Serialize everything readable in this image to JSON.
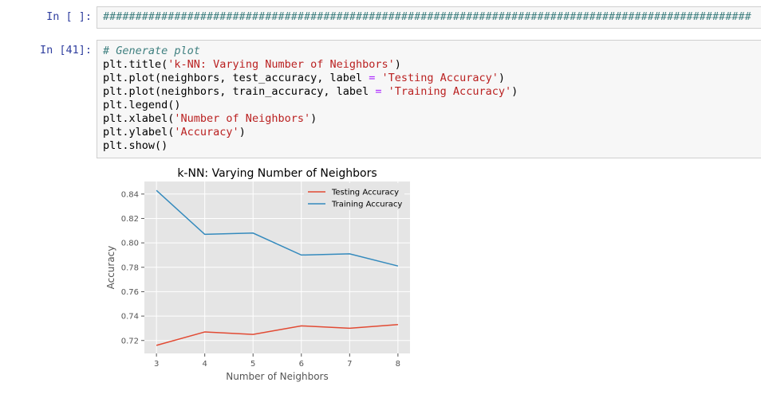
{
  "cells": [
    {
      "prompt": "In [ ]:",
      "code": "####################################################################################################"
    },
    {
      "prompt": "In [41]:",
      "lines": [
        {
          "segments": [
            {
              "t": "# Generate plot",
              "c": "cm"
            }
          ]
        },
        {
          "segments": [
            {
              "t": "plt.title(",
              "c": ""
            },
            {
              "t": "'k-NN: Varying Number of Neighbors'",
              "c": "str"
            },
            {
              "t": ")",
              "c": ""
            }
          ]
        },
        {
          "segments": [
            {
              "t": "plt.plot(neighbors, test_accuracy, label ",
              "c": ""
            },
            {
              "t": "=",
              "c": "op"
            },
            {
              "t": " ",
              "c": ""
            },
            {
              "t": "'Testing Accuracy'",
              "c": "str"
            },
            {
              "t": ")",
              "c": ""
            }
          ]
        },
        {
          "segments": [
            {
              "t": "plt.plot(neighbors, train_accuracy, label ",
              "c": ""
            },
            {
              "t": "=",
              "c": "op"
            },
            {
              "t": " ",
              "c": ""
            },
            {
              "t": "'Training Accuracy'",
              "c": "str"
            },
            {
              "t": ")",
              "c": ""
            }
          ]
        },
        {
          "segments": [
            {
              "t": "plt.legend()",
              "c": ""
            }
          ]
        },
        {
          "segments": [
            {
              "t": "plt.xlabel(",
              "c": ""
            },
            {
              "t": "'Number of Neighbors'",
              "c": "str"
            },
            {
              "t": ")",
              "c": ""
            }
          ]
        },
        {
          "segments": [
            {
              "t": "plt.ylabel(",
              "c": ""
            },
            {
              "t": "'Accuracy'",
              "c": "str"
            },
            {
              "t": ")",
              "c": ""
            }
          ]
        },
        {
          "segments": [
            {
              "t": "plt.show()",
              "c": ""
            }
          ]
        }
      ]
    }
  ],
  "chart_data": {
    "type": "line",
    "title": "k-NN: Varying Number of Neighbors",
    "xlabel": "Number of Neighbors",
    "ylabel": "Accuracy",
    "x": [
      3,
      4,
      5,
      6,
      7,
      8
    ],
    "xticks": [
      "3",
      "4",
      "5",
      "6",
      "7",
      "8"
    ],
    "yticks": [
      "0.72",
      "0.74",
      "0.76",
      "0.78",
      "0.80",
      "0.82",
      "0.84"
    ],
    "ytick_values": [
      0.72,
      0.74,
      0.76,
      0.78,
      0.8,
      0.82,
      0.84
    ],
    "xlim": [
      2.75,
      8.25
    ],
    "ylim": [
      0.7094,
      0.8503
    ],
    "series": [
      {
        "name": "Testing Accuracy",
        "color": "#e24a33",
        "values": [
          0.716,
          0.727,
          0.725,
          0.732,
          0.73,
          0.733
        ]
      },
      {
        "name": "Training Accuracy",
        "color": "#348abd",
        "values": [
          0.843,
          0.807,
          0.808,
          0.79,
          0.791,
          0.781
        ]
      }
    ],
    "legend": "top-right",
    "grid": true,
    "style": "ggplot"
  }
}
